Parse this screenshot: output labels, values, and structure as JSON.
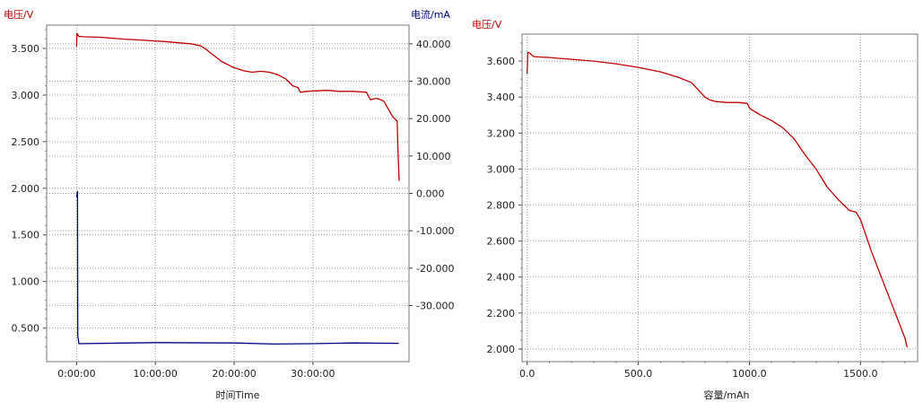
{
  "chart_data": [
    {
      "type": "line",
      "xlabel": "时间Time",
      "ylabel_left": "电压/V",
      "ylabel_right": "电流/mA",
      "x_tick_labels": [
        "0:00:00",
        "10:00:00",
        "20:00:00",
        "30:00:00"
      ],
      "x_ticks_hours": [
        0,
        10,
        20,
        30
      ],
      "xlim_hours": [
        -3.8,
        42.2
      ],
      "ylim_left": [
        0.14,
        3.75
      ],
      "ylim_right": [
        -45000,
        45000
      ],
      "yticks_left": [
        0.5,
        1.0,
        1.5,
        2.0,
        2.5,
        3.0,
        3.5
      ],
      "ytick_labels_left": [
        "0.500",
        "1.000",
        "1.500",
        "2.000",
        "2.500",
        "3.000",
        "3.500"
      ],
      "yticks_right": [
        -30000,
        -20000,
        -10000,
        0,
        10000,
        20000,
        30000,
        40000
      ],
      "ytick_labels_right": [
        "-30.000",
        "-20.000",
        "-10.000",
        "0.000",
        "10.000",
        "20.000",
        "30.000",
        "40.000"
      ],
      "grid": true,
      "colors": {
        "voltage": "#c00000",
        "current": "#000080",
        "left_label": "#c00000",
        "right_label": "#000080"
      },
      "series": [
        {
          "axis": "left",
          "x": [
            0,
            0.05,
            0.3,
            1,
            3,
            6,
            9,
            11,
            13,
            14.5,
            15.7,
            16.3,
            17.2,
            18.4,
            19.8,
            21.2,
            22.3,
            23.4,
            24.5,
            25.5,
            26.6,
            27.4,
            28.1,
            28.4,
            29.3,
            30.5,
            31.9,
            33.3,
            35,
            36.8,
            37.3,
            38.1,
            39,
            39.5,
            40.1,
            40.7,
            40.8,
            40.95
          ],
          "y": [
            3.52,
            3.66,
            3.63,
            3.625,
            3.62,
            3.6,
            3.585,
            3.575,
            3.56,
            3.55,
            3.53,
            3.5,
            3.44,
            3.36,
            3.3,
            3.26,
            3.245,
            3.255,
            3.245,
            3.22,
            3.17,
            3.1,
            3.08,
            3.03,
            3.04,
            3.045,
            3.05,
            3.04,
            3.04,
            3.03,
            2.95,
            2.965,
            2.935,
            2.86,
            2.77,
            2.72,
            2.4,
            2.08
          ]
        },
        {
          "axis": "right",
          "x": [
            0,
            0.12,
            0.15,
            0.3,
            10,
            20,
            25,
            30,
            35,
            40.9
          ],
          "y": [
            -1000,
            500,
            -38000,
            -40200,
            -39900,
            -40000,
            -40300,
            -40200,
            -40000,
            -40100
          ]
        }
      ]
    },
    {
      "type": "line",
      "xlabel": "容量/mAh",
      "ylabel": "电压/V",
      "x_tick_labels": [
        "0.0",
        "500.0",
        "1000.0",
        "1500.0"
      ],
      "x_ticks": [
        0,
        500,
        1000,
        1500
      ],
      "xlim": [
        -23,
        1757
      ],
      "ylim": [
        1.93,
        3.75
      ],
      "yticks": [
        2.0,
        2.2,
        2.4,
        2.6,
        2.8,
        3.0,
        3.2,
        3.4,
        3.6
      ],
      "ytick_labels": [
        "2.000",
        "2.200",
        "2.400",
        "2.600",
        "2.800",
        "3.000",
        "3.200",
        "3.400",
        "3.600"
      ],
      "grid": true,
      "colors": {
        "voltage": "#c00000",
        "label": "#c00000"
      },
      "series": [
        {
          "x": [
            0,
            3,
            10,
            30,
            100,
            200,
            300,
            400,
            500,
            600,
            680,
            740,
            770,
            800,
            820,
            850,
            900,
            950,
            990,
            1000,
            1010,
            1050,
            1100,
            1150,
            1200,
            1250,
            1300,
            1350,
            1400,
            1450,
            1480,
            1500,
            1550,
            1600,
            1650,
            1700,
            1710
          ],
          "y": [
            3.53,
            3.65,
            3.645,
            3.625,
            3.62,
            3.61,
            3.6,
            3.585,
            3.565,
            3.54,
            3.51,
            3.48,
            3.44,
            3.4,
            3.385,
            3.375,
            3.37,
            3.37,
            3.365,
            3.34,
            3.33,
            3.3,
            3.27,
            3.23,
            3.17,
            3.08,
            3.0,
            2.9,
            2.83,
            2.77,
            2.76,
            2.72,
            2.54,
            2.38,
            2.22,
            2.06,
            2.01
          ]
        }
      ]
    }
  ]
}
